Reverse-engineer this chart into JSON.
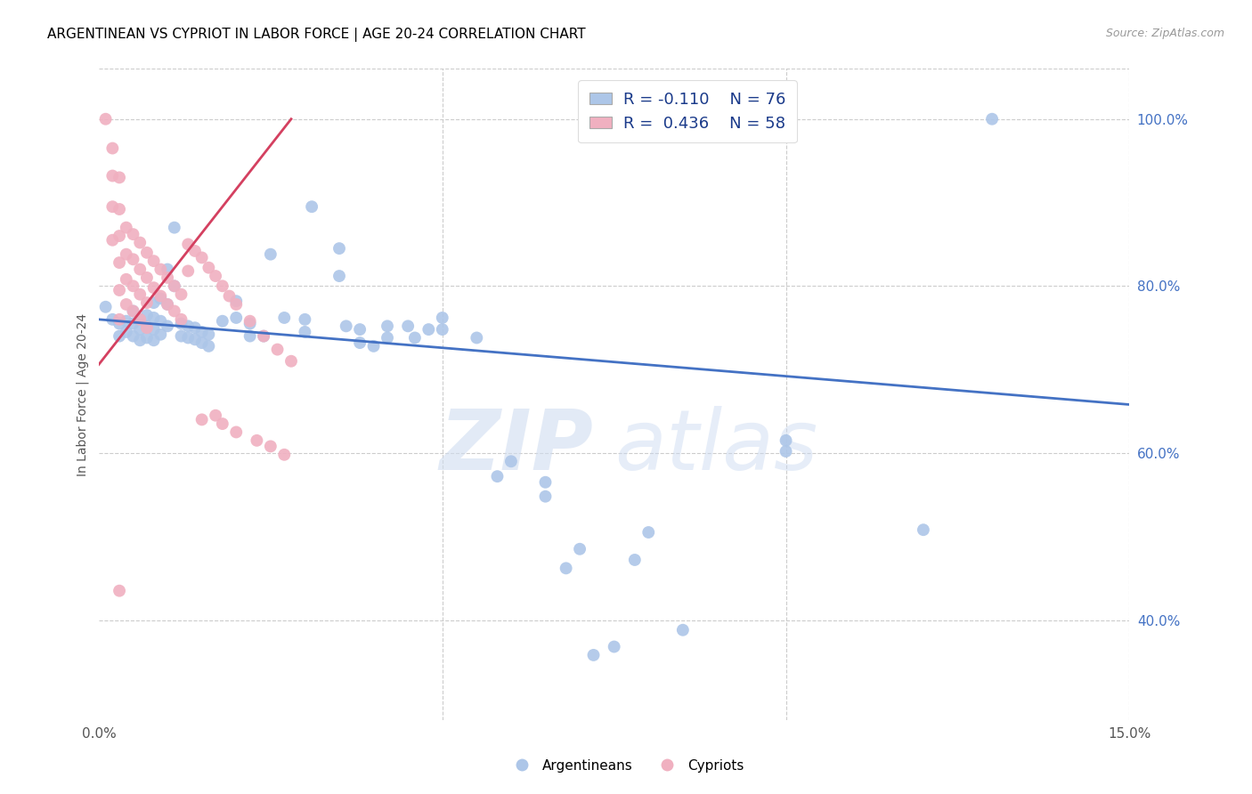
{
  "title": "ARGENTINEAN VS CYPRIOT IN LABOR FORCE | AGE 20-24 CORRELATION CHART",
  "source": "Source: ZipAtlas.com",
  "ylabel": "In Labor Force | Age 20-24",
  "y_ticks_right": [
    0.4,
    0.6,
    0.8,
    1.0
  ],
  "y_tick_labels_right": [
    "40.0%",
    "60.0%",
    "80.0%",
    "100.0%"
  ],
  "x_min": 0.0,
  "x_max": 0.15,
  "y_min": 0.28,
  "y_max": 1.06,
  "legend_r_blue": "R = -0.110",
  "legend_n_blue": "N = 76",
  "legend_r_pink": "R =  0.436",
  "legend_n_pink": "N = 58",
  "blue_color": "#adc6e8",
  "pink_color": "#f0b0c0",
  "trend_blue": "#4472c4",
  "trend_pink": "#d44060",
  "watermark_zip": "ZIP",
  "watermark_atlas": "atlas",
  "title_fontsize": 11,
  "blue_scatter": [
    [
      0.001,
      0.775
    ],
    [
      0.002,
      0.76
    ],
    [
      0.003,
      0.755
    ],
    [
      0.003,
      0.74
    ],
    [
      0.004,
      0.758
    ],
    [
      0.004,
      0.745
    ],
    [
      0.005,
      0.77
    ],
    [
      0.005,
      0.755
    ],
    [
      0.005,
      0.74
    ],
    [
      0.006,
      0.76
    ],
    [
      0.006,
      0.748
    ],
    [
      0.006,
      0.735
    ],
    [
      0.007,
      0.765
    ],
    [
      0.007,
      0.752
    ],
    [
      0.007,
      0.738
    ],
    [
      0.008,
      0.78
    ],
    [
      0.008,
      0.762
    ],
    [
      0.008,
      0.748
    ],
    [
      0.008,
      0.735
    ],
    [
      0.009,
      0.785
    ],
    [
      0.009,
      0.758
    ],
    [
      0.009,
      0.742
    ],
    [
      0.01,
      0.82
    ],
    [
      0.01,
      0.778
    ],
    [
      0.01,
      0.752
    ],
    [
      0.011,
      0.87
    ],
    [
      0.011,
      0.8
    ],
    [
      0.012,
      0.755
    ],
    [
      0.012,
      0.74
    ],
    [
      0.013,
      0.752
    ],
    [
      0.013,
      0.738
    ],
    [
      0.014,
      0.75
    ],
    [
      0.014,
      0.736
    ],
    [
      0.015,
      0.745
    ],
    [
      0.015,
      0.732
    ],
    [
      0.016,
      0.742
    ],
    [
      0.016,
      0.728
    ],
    [
      0.018,
      0.758
    ],
    [
      0.02,
      0.782
    ],
    [
      0.02,
      0.762
    ],
    [
      0.022,
      0.755
    ],
    [
      0.022,
      0.74
    ],
    [
      0.024,
      0.74
    ],
    [
      0.025,
      0.838
    ],
    [
      0.027,
      0.762
    ],
    [
      0.03,
      0.76
    ],
    [
      0.03,
      0.745
    ],
    [
      0.031,
      0.895
    ],
    [
      0.035,
      0.845
    ],
    [
      0.035,
      0.812
    ],
    [
      0.036,
      0.752
    ],
    [
      0.038,
      0.748
    ],
    [
      0.038,
      0.732
    ],
    [
      0.04,
      0.728
    ],
    [
      0.042,
      0.752
    ],
    [
      0.042,
      0.738
    ],
    [
      0.045,
      0.752
    ],
    [
      0.046,
      0.738
    ],
    [
      0.048,
      0.748
    ],
    [
      0.05,
      0.762
    ],
    [
      0.05,
      0.748
    ],
    [
      0.055,
      0.738
    ],
    [
      0.058,
      0.572
    ],
    [
      0.06,
      0.59
    ],
    [
      0.065,
      0.565
    ],
    [
      0.065,
      0.548
    ],
    [
      0.068,
      0.462
    ],
    [
      0.07,
      0.485
    ],
    [
      0.072,
      0.358
    ],
    [
      0.075,
      0.368
    ],
    [
      0.078,
      0.472
    ],
    [
      0.08,
      0.505
    ],
    [
      0.085,
      0.388
    ],
    [
      0.1,
      0.615
    ],
    [
      0.1,
      0.602
    ],
    [
      0.12,
      0.508
    ],
    [
      0.13,
      1.0
    ]
  ],
  "pink_scatter": [
    [
      0.001,
      1.0
    ],
    [
      0.002,
      0.965
    ],
    [
      0.002,
      0.932
    ],
    [
      0.002,
      0.895
    ],
    [
      0.002,
      0.855
    ],
    [
      0.003,
      0.93
    ],
    [
      0.003,
      0.892
    ],
    [
      0.003,
      0.86
    ],
    [
      0.003,
      0.828
    ],
    [
      0.003,
      0.795
    ],
    [
      0.003,
      0.76
    ],
    [
      0.004,
      0.87
    ],
    [
      0.004,
      0.838
    ],
    [
      0.004,
      0.808
    ],
    [
      0.004,
      0.778
    ],
    [
      0.005,
      0.862
    ],
    [
      0.005,
      0.832
    ],
    [
      0.005,
      0.8
    ],
    [
      0.005,
      0.77
    ],
    [
      0.006,
      0.852
    ],
    [
      0.006,
      0.82
    ],
    [
      0.006,
      0.79
    ],
    [
      0.006,
      0.76
    ],
    [
      0.007,
      0.84
    ],
    [
      0.007,
      0.81
    ],
    [
      0.007,
      0.78
    ],
    [
      0.007,
      0.75
    ],
    [
      0.008,
      0.83
    ],
    [
      0.008,
      0.798
    ],
    [
      0.009,
      0.82
    ],
    [
      0.009,
      0.788
    ],
    [
      0.01,
      0.81
    ],
    [
      0.01,
      0.778
    ],
    [
      0.011,
      0.8
    ],
    [
      0.011,
      0.77
    ],
    [
      0.012,
      0.79
    ],
    [
      0.012,
      0.76
    ],
    [
      0.013,
      0.85
    ],
    [
      0.013,
      0.818
    ],
    [
      0.014,
      0.842
    ],
    [
      0.015,
      0.834
    ],
    [
      0.015,
      0.64
    ],
    [
      0.016,
      0.822
    ],
    [
      0.017,
      0.812
    ],
    [
      0.017,
      0.645
    ],
    [
      0.018,
      0.8
    ],
    [
      0.018,
      0.635
    ],
    [
      0.019,
      0.788
    ],
    [
      0.02,
      0.778
    ],
    [
      0.02,
      0.625
    ],
    [
      0.022,
      0.758
    ],
    [
      0.023,
      0.615
    ],
    [
      0.024,
      0.74
    ],
    [
      0.025,
      0.608
    ],
    [
      0.026,
      0.724
    ],
    [
      0.027,
      0.598
    ],
    [
      0.028,
      0.71
    ],
    [
      0.003,
      0.435
    ]
  ],
  "blue_trend_x": [
    0.0,
    0.15
  ],
  "blue_trend_y": [
    0.76,
    0.658
  ],
  "pink_trend_x": [
    0.0,
    0.028
  ],
  "pink_trend_y": [
    0.706,
    1.0
  ]
}
